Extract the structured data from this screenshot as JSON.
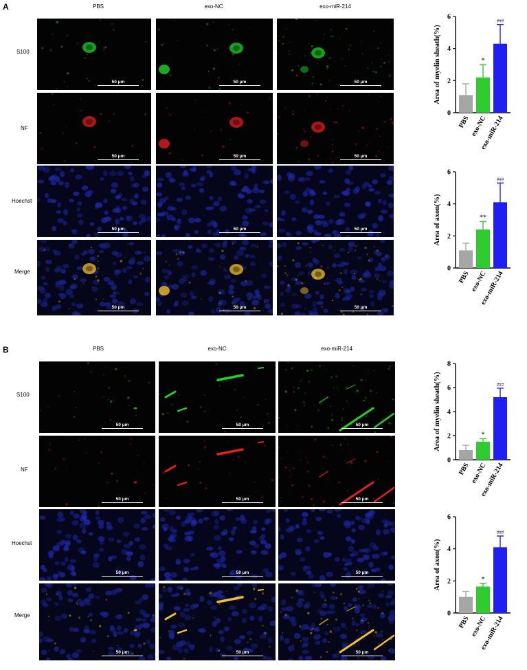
{
  "figure": {
    "panels": [
      {
        "letter": "A",
        "columns": [
          "PBS",
          "exo-NC",
          "exo-miR-214"
        ],
        "rows": [
          "S100",
          "NF",
          "Hoechst",
          "Merge"
        ],
        "scale_bar": "50 μm"
      },
      {
        "letter": "B",
        "columns": [
          "PBS",
          "exo-NC",
          "exo-miR-214"
        ],
        "rows": [
          "S100",
          "NF",
          "Hoechst",
          "Merge"
        ],
        "scale_bar": "50 μm"
      }
    ]
  },
  "chart_data": [
    {
      "type": "bar",
      "panel": "A",
      "categories": [
        "PBS",
        "exo-NC",
        "exo-miR-214"
      ],
      "values": [
        1.1,
        2.2,
        4.3
      ],
      "errors": [
        0.7,
        0.8,
        1.2
      ],
      "annotations": [
        "",
        "*",
        "###"
      ],
      "ylabel": "Area of myelin sheath(%)",
      "ylim": [
        0,
        6
      ],
      "yticks": [
        0,
        2,
        4,
        6
      ],
      "colors": [
        "#a6a6a6",
        "#2ecc2e",
        "#1f1ff0"
      ]
    },
    {
      "type": "bar",
      "panel": "A",
      "categories": [
        "PBS",
        "exo-NC",
        "exo-miR-214"
      ],
      "values": [
        1.1,
        2.4,
        4.1
      ],
      "errors": [
        0.45,
        0.5,
        1.2
      ],
      "annotations": [
        "",
        "**",
        "###"
      ],
      "ylabel": "Area of axon(%)",
      "ylim": [
        0,
        6
      ],
      "yticks": [
        0,
        2,
        4,
        6
      ],
      "colors": [
        "#a6a6a6",
        "#2ecc2e",
        "#1f1ff0"
      ]
    },
    {
      "type": "bar",
      "panel": "B",
      "categories": [
        "PBS",
        "exo-NC",
        "exo-miR-214"
      ],
      "values": [
        0.8,
        1.5,
        5.2
      ],
      "errors": [
        0.4,
        0.25,
        0.75
      ],
      "annotations": [
        "",
        "*",
        "###"
      ],
      "ylabel": "Area of myelin sheath(%)",
      "ylim": [
        0,
        8
      ],
      "yticks": [
        0,
        2,
        4,
        6,
        8
      ],
      "colors": [
        "#a6a6a6",
        "#2ecc2e",
        "#1f1ff0"
      ]
    },
    {
      "type": "bar",
      "panel": "B",
      "categories": [
        "PBS",
        "exo-NC",
        "exo-miR-214"
      ],
      "values": [
        1.0,
        1.65,
        4.1
      ],
      "errors": [
        0.35,
        0.2,
        0.7
      ],
      "annotations": [
        "",
        "*",
        "###"
      ],
      "ylabel": "Area of axon(%)",
      "ylim": [
        0,
        6
      ],
      "yticks": [
        0,
        2,
        4,
        6
      ],
      "colors": [
        "#a6a6a6",
        "#2ecc2e",
        "#1f1ff0"
      ]
    }
  ]
}
